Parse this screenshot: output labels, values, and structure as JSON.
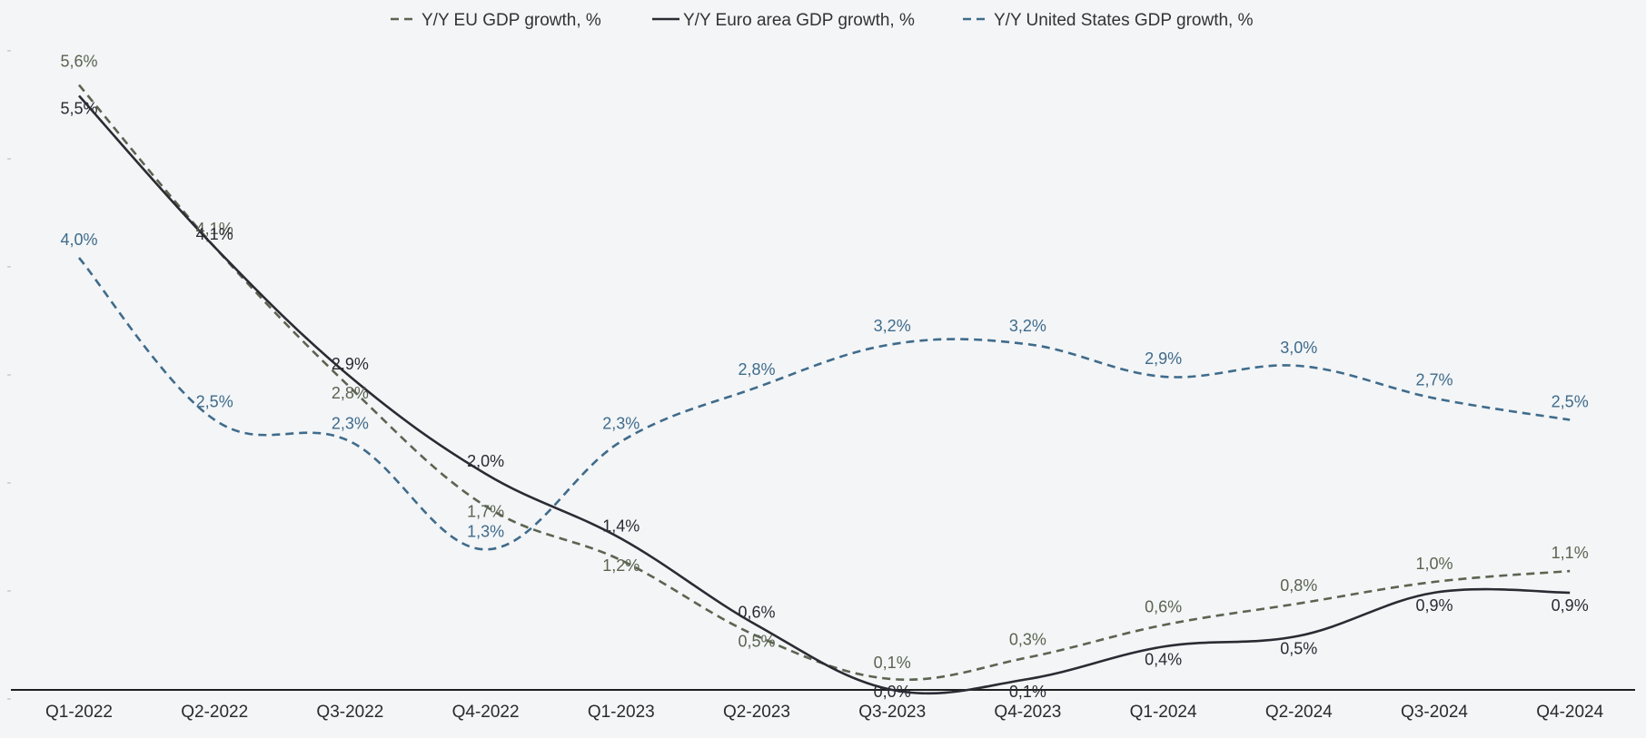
{
  "chart_data": {
    "type": "line",
    "title": "",
    "xlabel": "",
    "ylabel": "",
    "categories": [
      "Q1-2022",
      "Q2-2022",
      "Q3-2022",
      "Q4-2022",
      "Q1-2023",
      "Q2-2023",
      "Q3-2023",
      "Q4-2023",
      "Q1-2024",
      "Q2-2024",
      "Q3-2024",
      "Q4-2024"
    ],
    "ylim": [
      0,
      6
    ],
    "grid": false,
    "legend_position": "top-center",
    "series": [
      {
        "name": "Y/Y EU GDP growth, %",
        "values": [
          5.6,
          4.1,
          2.8,
          1.7,
          1.2,
          0.5,
          0.1,
          0.3,
          0.6,
          0.8,
          1.0,
          1.1
        ],
        "labels": [
          "5,6%",
          "4,1%",
          "2,8%",
          "1,7%",
          "1,2%",
          "0,5%",
          "0,1%",
          "0,3%",
          "0,6%",
          "0,8%",
          "1,0%",
          "1,1%"
        ],
        "color": "#5b6450",
        "dash": "dashed"
      },
      {
        "name": "Y/Y Euro area GDP growth, %",
        "values": [
          5.5,
          4.1,
          2.9,
          2.0,
          1.4,
          0.6,
          0.0,
          0.1,
          0.4,
          0.5,
          0.9,
          0.9
        ],
        "labels": [
          "5,5%",
          "4,1%",
          "2,9%",
          "2,0%",
          "1,4%",
          "0,6%",
          "0,0%",
          "0,1%",
          "0,4%",
          "0,5%",
          "0,9%",
          "0,9%"
        ],
        "color": "#2b2b33",
        "dash": "solid"
      },
      {
        "name": "Y/Y United States GDP growth, %",
        "values": [
          4.0,
          2.5,
          2.3,
          1.3,
          2.3,
          2.8,
          3.2,
          3.2,
          2.9,
          3.0,
          2.7,
          2.5
        ],
        "labels": [
          "4,0%",
          "2,5%",
          "2,3%",
          "1,3%",
          "2,3%",
          "2,8%",
          "3,2%",
          "3,2%",
          "2,9%",
          "3,0%",
          "2,7%",
          "2,5%"
        ],
        "color": "#3f6b8b",
        "dash": "dashed"
      }
    ]
  }
}
